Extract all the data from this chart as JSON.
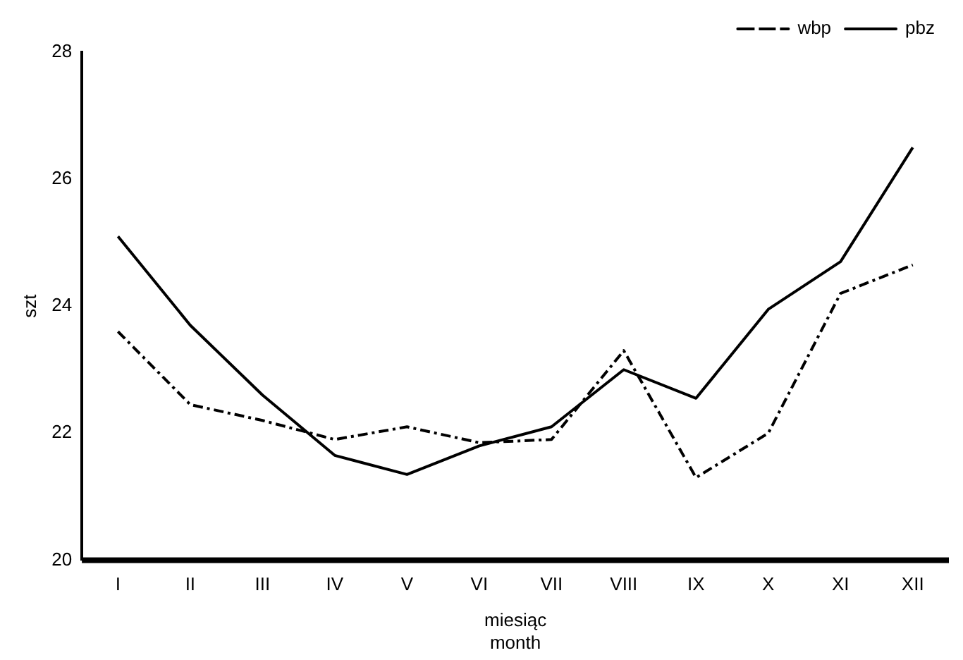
{
  "chart_data": {
    "type": "line",
    "xlabel": "miesiąc\nmonth",
    "ylabel": "szt",
    "categories": [
      "I",
      "II",
      "III",
      "IV",
      "V",
      "VI",
      "VII",
      "VIII",
      "IX",
      "X",
      "XI",
      "XII"
    ],
    "series": [
      {
        "name": "wbp",
        "color": "#000000",
        "line_style": "dashed",
        "values": [
          23.6,
          22.45,
          22.2,
          21.9,
          22.1,
          21.85,
          21.9,
          23.3,
          21.3,
          22.0,
          24.2,
          24.65
        ]
      },
      {
        "name": "pbz",
        "color": "#000000",
        "line_style": "solid",
        "values": [
          25.1,
          23.7,
          22.6,
          21.65,
          21.35,
          21.8,
          22.1,
          23.0,
          22.55,
          23.95,
          24.7,
          26.5
        ]
      }
    ],
    "ylim": [
      20,
      28
    ],
    "yticks": [
      20,
      22,
      24,
      26,
      28
    ],
    "grid": false,
    "legend": "top right",
    "marker": "none"
  }
}
